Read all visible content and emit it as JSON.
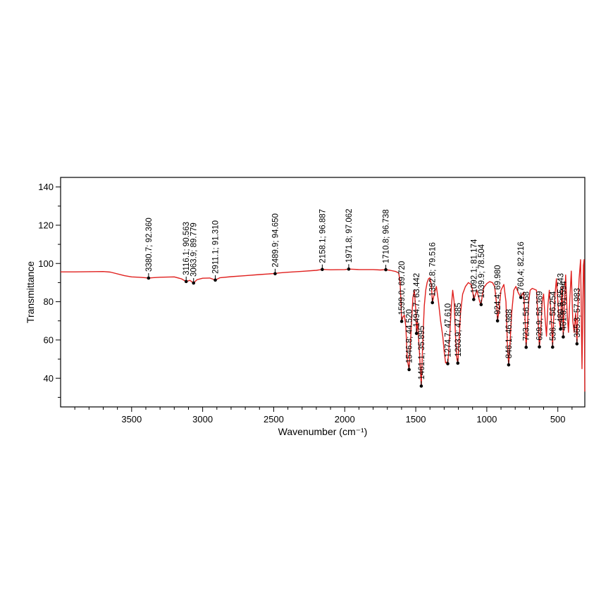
{
  "chart_data": {
    "type": "line",
    "title": "",
    "xlabel": "Wavenumber (cm⁻¹)",
    "ylabel": "Transmittance",
    "xlim": [
      4000,
      310
    ],
    "ylim": [
      25,
      145
    ],
    "x_ticks": [
      3500,
      3000,
      2500,
      2000,
      1500,
      1000,
      500
    ],
    "y_ticks": [
      40,
      60,
      80,
      100,
      120,
      140
    ],
    "grid": false,
    "legend": "none",
    "line_color": "#e0201e",
    "peaks": [
      {
        "x": 3380.7,
        "y": 92.36,
        "label": "3380.7; 92.360"
      },
      {
        "x": 3116.1,
        "y": 90.563,
        "label": "3116.1; 90.563"
      },
      {
        "x": 3063.9,
        "y": 89.779,
        "label": "3063.9; 89.779"
      },
      {
        "x": 2911.1,
        "y": 91.31,
        "label": "2911.1; 91.310"
      },
      {
        "x": 2489.9,
        "y": 94.65,
        "label": "2489.9; 94.650"
      },
      {
        "x": 2158.1,
        "y": 96.887,
        "label": "2158.1; 96.887"
      },
      {
        "x": 1971.8,
        "y": 97.062,
        "label": "1971.8; 97.062"
      },
      {
        "x": 1710.8,
        "y": 96.738,
        "label": "1710.8; 96.738"
      },
      {
        "x": 1599.0,
        "y": 69.72,
        "label": "1599.0; 69.720"
      },
      {
        "x": 1546.8,
        "y": 44.52,
        "label": "1546.8; 44.520"
      },
      {
        "x": 1494.7,
        "y": 63.442,
        "label": "1494.7; 63.442"
      },
      {
        "x": 1461.1,
        "y": 35.895,
        "label": "1461.1; 35.895"
      },
      {
        "x": 1382.8,
        "y": 79.516,
        "label": "1382.8; 79.516"
      },
      {
        "x": 1274.7,
        "y": 47.61,
        "label": "1274.7; 47.610"
      },
      {
        "x": 1203.9,
        "y": 47.885,
        "label": "1203.9; 47.885"
      },
      {
        "x": 1092.1,
        "y": 81.174,
        "label": "1092.1; 81.174"
      },
      {
        "x": 1039.9,
        "y": 78.504,
        "label": "1039.9; 78.504"
      },
      {
        "x": 924.4,
        "y": 69.98,
        "label": "924.4; 69.980"
      },
      {
        "x": 846.1,
        "y": 46.988,
        "label": "846.1; 46.988"
      },
      {
        "x": 760.4,
        "y": 82.216,
        "label": "760.4; 82.216"
      },
      {
        "x": 723.1,
        "y": 56.168,
        "label": "723.1; 56.168"
      },
      {
        "x": 629.9,
        "y": 56.369,
        "label": "629.9; 56.369"
      },
      {
        "x": 536.7,
        "y": 56.254,
        "label": "536.7; 56.254"
      },
      {
        "x": 480.8,
        "y": 65.743,
        "label": "480.8; 65.743"
      },
      {
        "x": 461.8,
        "y": 61.594,
        "label": "461.8; 61.594"
      },
      {
        "x": 365.3,
        "y": 57.983,
        "label": "365.3; 57.983"
      }
    ],
    "series": [
      {
        "x": [
          4000,
          3900,
          3800,
          3700,
          3650,
          3550,
          3500,
          3450,
          3400,
          3380.7,
          3350,
          3300,
          3200,
          3150,
          3116.1,
          3090,
          3063.9,
          3040,
          3000,
          2950,
          2911.1,
          2880,
          2800,
          2700,
          2600,
          2500,
          2489.9,
          2470,
          2400,
          2300,
          2200,
          2158.1,
          2100,
          2000,
          1971.8,
          1900,
          1800,
          1750,
          1710.8,
          1680,
          1640,
          1620,
          1610,
          1599,
          1590,
          1580,
          1570,
          1560,
          1546.8,
          1535,
          1520,
          1510,
          1500,
          1494.7,
          1488,
          1475,
          1461.1,
          1450,
          1440,
          1430,
          1420,
          1410,
          1400,
          1390,
          1382.8,
          1370,
          1355,
          1340,
          1325,
          1310,
          1300,
          1290,
          1280,
          1274.7,
          1268,
          1260,
          1250,
          1240,
          1230,
          1220,
          1210,
          1203.9,
          1195,
          1185,
          1170,
          1150,
          1130,
          1110,
          1100,
          1092.1,
          1080,
          1070,
          1060,
          1050,
          1039.9,
          1030,
          1020,
          1000,
          980,
          960,
          945,
          930,
          924.4,
          915,
          900,
          880,
          865,
          855,
          846.1,
          838,
          825,
          810,
          795,
          780,
          770,
          760.4,
          750,
          740,
          730,
          723.1,
          715,
          705,
          695,
          680,
          665,
          650,
          640,
          629.9,
          620,
          610,
          600,
          590,
          580,
          570,
          560,
          550,
          540,
          536.7,
          530,
          520,
          510,
          500,
          490,
          480.8,
          475,
          470,
          465,
          461.8,
          455,
          445,
          435,
          425,
          415,
          405,
          395,
          385,
          375,
          365.3,
          360,
          350,
          340,
          330,
          320,
          315,
          310
        ],
        "y": [
          95.6,
          95.6,
          95.7,
          95.8,
          95.5,
          93.6,
          93.0,
          92.8,
          92.5,
          92.36,
          92.6,
          92.8,
          93.0,
          92.0,
          90.56,
          91.2,
          89.78,
          91.5,
          92.3,
          92.4,
          91.31,
          92.5,
          93.1,
          93.6,
          94.2,
          94.7,
          94.65,
          95.0,
          95.4,
          95.9,
          96.4,
          96.89,
          96.7,
          96.8,
          97.06,
          96.8,
          96.8,
          96.6,
          96.74,
          96.4,
          95.8,
          95.0,
          90.0,
          69.7,
          72.0,
          73.0,
          67.0,
          50.0,
          44.5,
          62.0,
          82.0,
          86.0,
          76.0,
          63.4,
          70.0,
          55.0,
          35.9,
          60.0,
          78.0,
          86.0,
          90.0,
          92.0,
          92.5,
          89.0,
          79.5,
          84.0,
          88.0,
          80.0,
          70.0,
          62.0,
          54.0,
          48.0,
          48.5,
          47.6,
          54.0,
          64.0,
          77.0,
          86.0,
          80.0,
          62.0,
          50.0,
          47.9,
          60.0,
          74.0,
          84.0,
          88.0,
          90.0,
          89.0,
          86.0,
          81.2,
          83.5,
          86.0,
          83.0,
          80.0,
          78.5,
          84.0,
          87.5,
          89.5,
          90.5,
          90.0,
          88.0,
          78.0,
          70.0,
          75.0,
          86.0,
          89.0,
          80.0,
          58.0,
          47.0,
          56.0,
          74.0,
          86.0,
          88.0,
          85.0,
          83.5,
          82.2,
          84.0,
          85.0,
          70.0,
          56.2,
          66.0,
          80.0,
          86.0,
          87.0,
          86.5,
          86.0,
          72.0,
          56.4,
          65.0,
          80.0,
          84.0,
          72.0,
          62.0,
          78.0,
          86.0,
          76.0,
          62.0,
          56.3,
          70.0,
          84.0,
          92.0,
          80.0,
          70.0,
          65.7,
          80.0,
          88.0,
          72.0,
          61.6,
          78.0,
          94.0,
          75.0,
          64.0,
          82.0,
          96.0,
          70.0,
          64.0,
          74.0,
          58.0,
          75.0,
          92.0,
          102.0,
          45.0,
          99.0,
          102.0,
          33.0
        ]
      }
    ]
  }
}
